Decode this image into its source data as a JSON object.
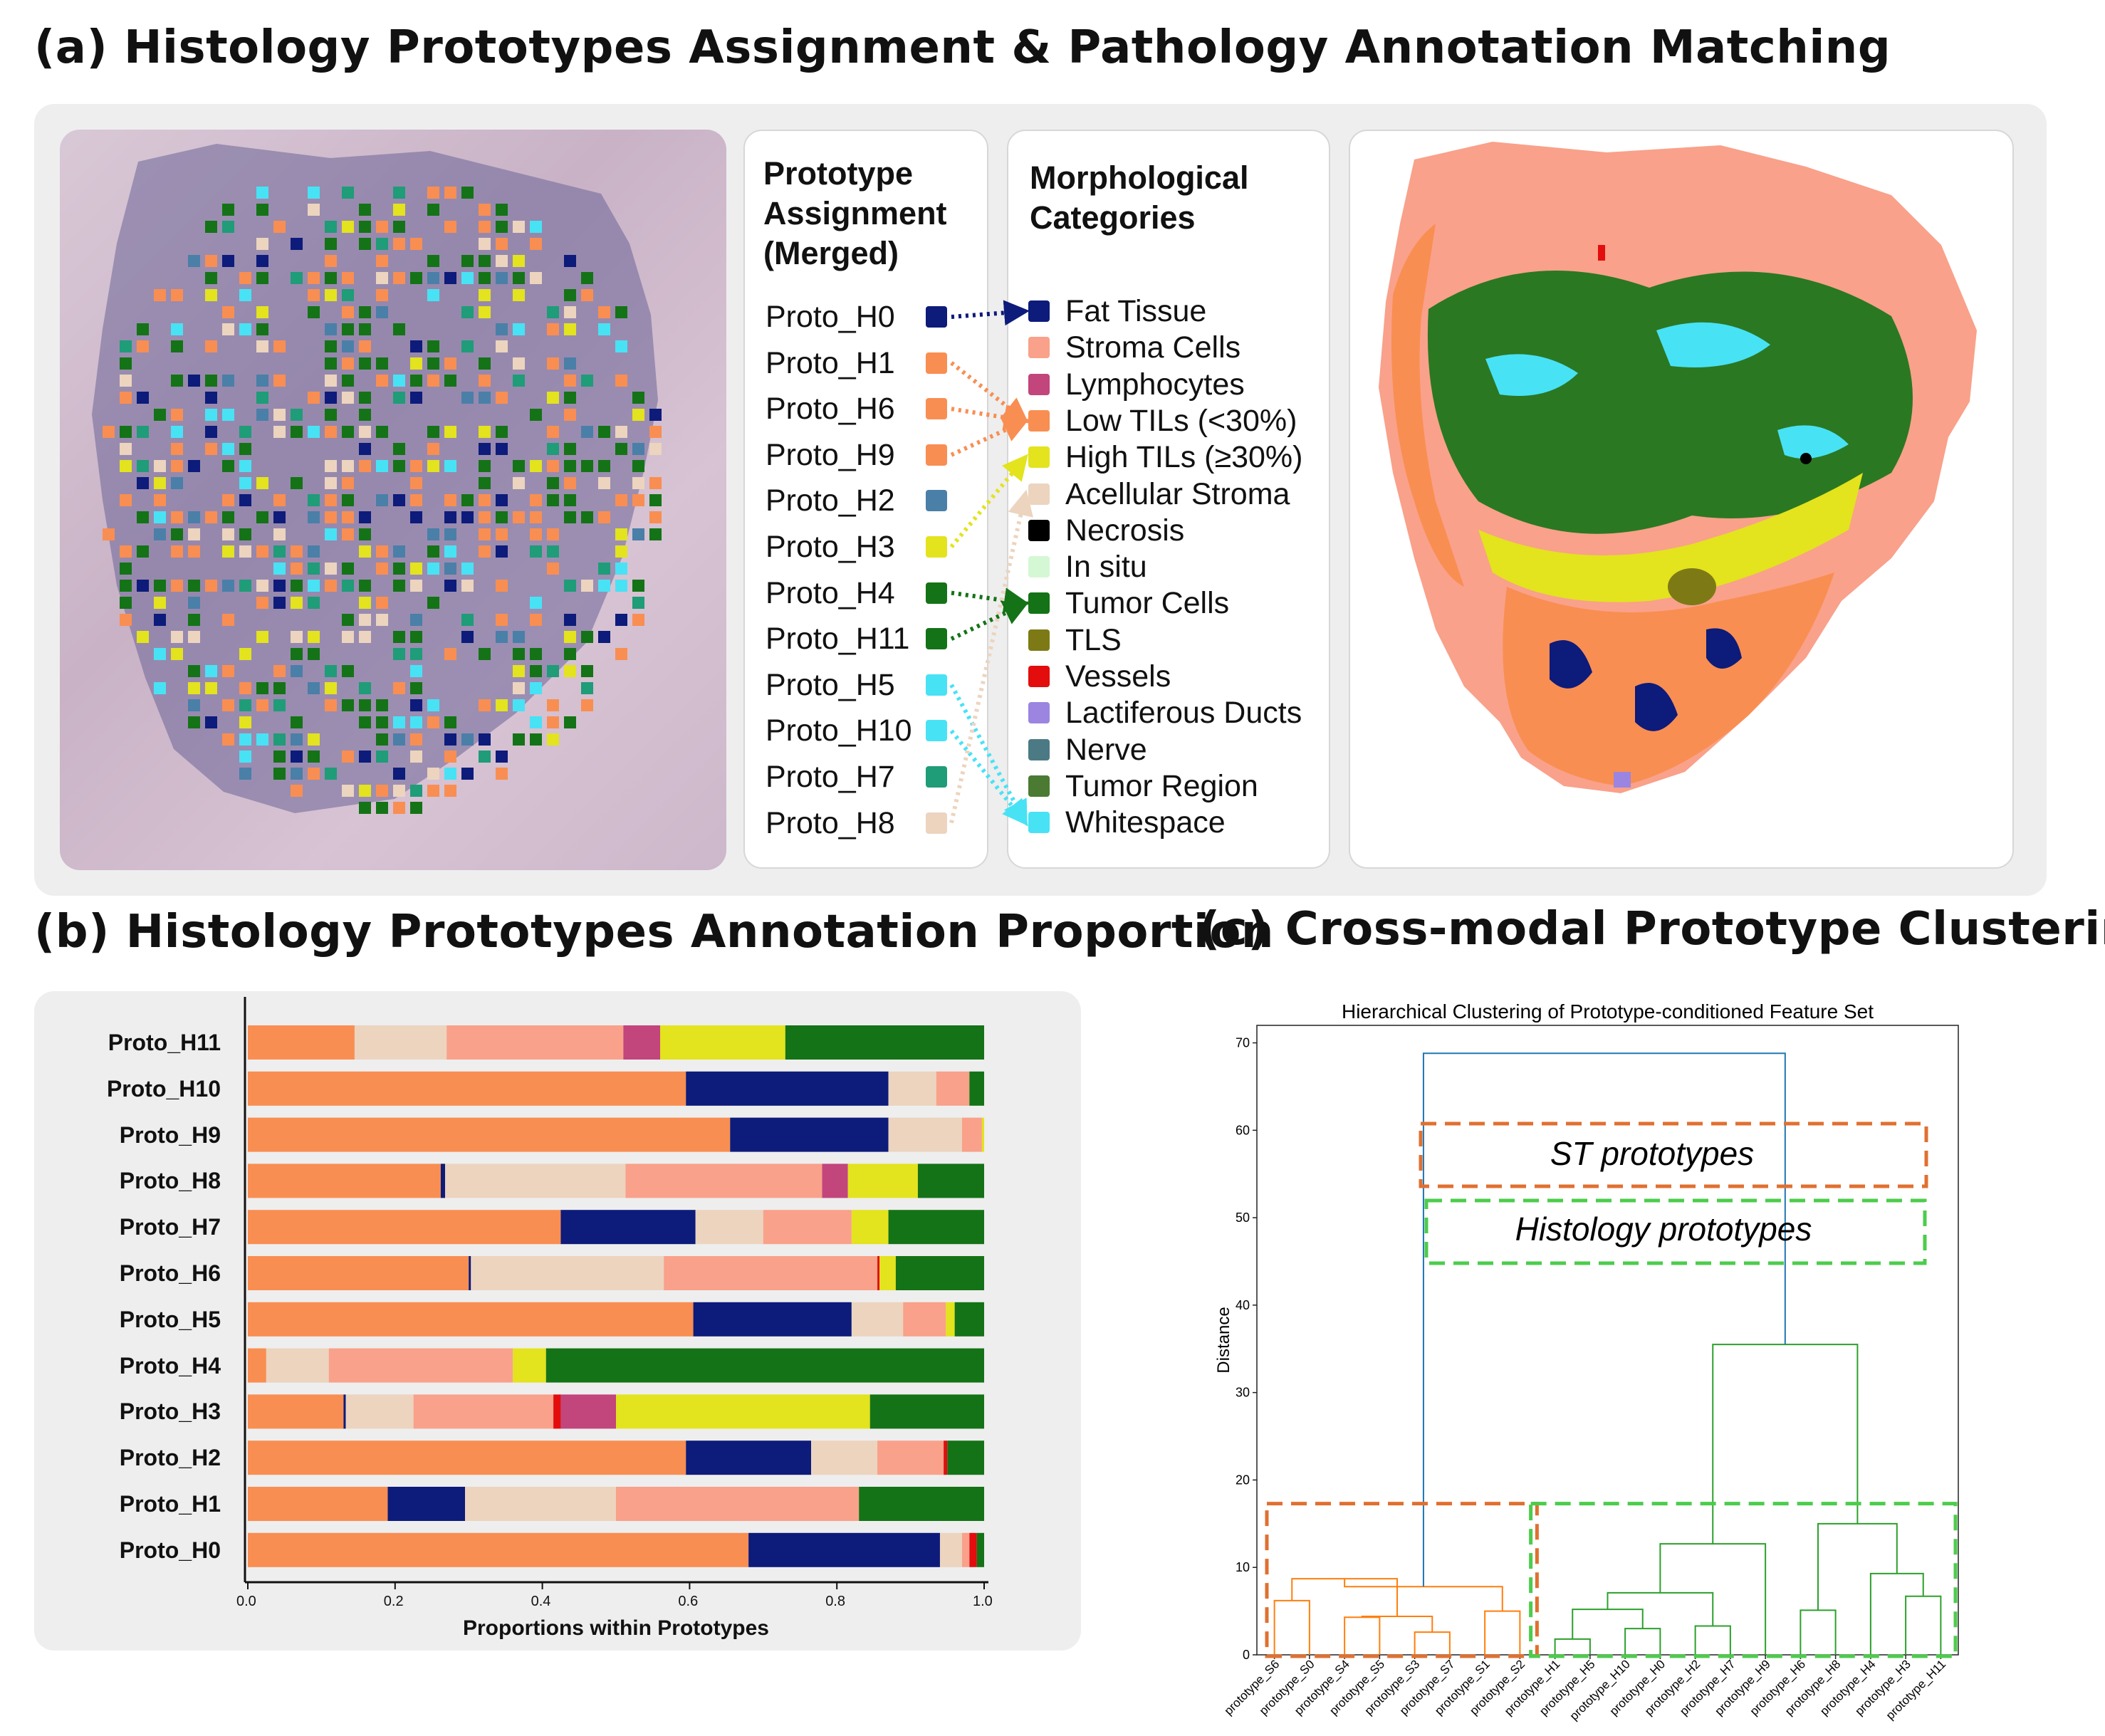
{
  "titles": {
    "a": "(a) Histology Prototypes Assignment & Pathology Annotation Matching",
    "b": "(b) Histology Prototypes Annotation Proportion",
    "c": "(c) Cross-modal Prototype Clustering"
  },
  "panel_a": {
    "assignment_title_lines": [
      "Prototype",
      "Assignment",
      "(Merged)"
    ],
    "morph_title_lines": [
      "Morphological",
      "Categories"
    ],
    "prototypes": [
      {
        "label": "Proto_H0",
        "color": "#0d1b7a",
        "target": "Fat Tissue"
      },
      {
        "label": "Proto_H1",
        "color": "#f98e52",
        "target": "Low TILs (<30%)"
      },
      {
        "label": "Proto_H6",
        "color": "#f98e52",
        "target": "Low TILs (<30%)"
      },
      {
        "label": "Proto_H9",
        "color": "#f98e52",
        "target": "Low TILs (<30%)"
      },
      {
        "label": "Proto_H2",
        "color": "#4a7fa8",
        "target": ""
      },
      {
        "label": "Proto_H3",
        "color": "#e3e31e",
        "target": "High TILs (≥30%)"
      },
      {
        "label": "Proto_H4",
        "color": "#147316",
        "target": "Tumor Cells"
      },
      {
        "label": "Proto_H11",
        "color": "#147316",
        "target": "Tumor Cells"
      },
      {
        "label": "Proto_H5",
        "color": "#48e2f5",
        "target": "Whitespace"
      },
      {
        "label": "Proto_H10",
        "color": "#48e2f5",
        "target": "Whitespace"
      },
      {
        "label": "Proto_H7",
        "color": "#1f9c78",
        "target": ""
      },
      {
        "label": "Proto_H8",
        "color": "#ecd4bf",
        "target": "Acellular Stroma"
      }
    ],
    "categories": [
      {
        "label": "Fat Tissue",
        "color": "#0d1b7a"
      },
      {
        "label": "Stroma Cells",
        "color": "#f9a18a"
      },
      {
        "label": "Lymphocytes",
        "color": "#c2457c"
      },
      {
        "label": "Low TILs (<30%)",
        "color": "#f98e52"
      },
      {
        "label": "High TILs (≥30%)",
        "color": "#e3e31e"
      },
      {
        "label": "Acellular Stroma",
        "color": "#ecd4bf"
      },
      {
        "label": "Necrosis",
        "color": "#000000"
      },
      {
        "label": "In situ",
        "color": "#d4f7d4"
      },
      {
        "label": "Tumor Cells",
        "color": "#147316"
      },
      {
        "label": "TLS",
        "color": "#7d7a16"
      },
      {
        "label": "Vessels",
        "color": "#e30d0d"
      },
      {
        "label": "Lactiferous Ducts",
        "color": "#9b85e0"
      },
      {
        "label": "Nerve",
        "color": "#4b7a84"
      },
      {
        "label": "Tumor Region",
        "color": "#4b7a32"
      },
      {
        "label": "Whitespace",
        "color": "#48e2f5"
      }
    ]
  },
  "chart_data": [
    {
      "type": "bar",
      "orientation": "horizontal-stacked",
      "xlabel": "Proportions within Prototypes",
      "xlim": [
        0.0,
        1.0
      ],
      "xticks": [
        "0.0",
        "0.2",
        "0.4",
        "0.6",
        "0.8",
        "1.0"
      ],
      "categories": [
        "Proto_H11",
        "Proto_H10",
        "Proto_H9",
        "Proto_H8",
        "Proto_H7",
        "Proto_H6",
        "Proto_H5",
        "Proto_H4",
        "Proto_H3",
        "Proto_H2",
        "Proto_H1",
        "Proto_H0"
      ],
      "segment_colors": {
        "Low TILs": "#f98e52",
        "Fat Tissue": "#0d1b7a",
        "Acellular Stroma": "#ecd4bf",
        "Stroma Cells": "#f9a18a",
        "Vessels": "#e30d0d",
        "Lymphocytes": "#c2457c",
        "High TILs": "#e3e31e",
        "Tumor Cells": "#147316"
      },
      "rows": [
        [
          [
            "Low TILs",
            0.145
          ],
          [
            "Acellular Stroma",
            0.125
          ],
          [
            "Stroma Cells",
            0.24
          ],
          [
            "Lymphocytes",
            0.05
          ],
          [
            "High TILs",
            0.17
          ],
          [
            "Tumor Cells",
            0.27
          ]
        ],
        [
          [
            "Low TILs",
            0.595
          ],
          [
            "Fat Tissue",
            0.275
          ],
          [
            "Acellular Stroma",
            0.065
          ],
          [
            "Stroma Cells",
            0.045
          ],
          [
            "Tumor Cells",
            0.02
          ]
        ],
        [
          [
            "Low TILs",
            0.655
          ],
          [
            "Fat Tissue",
            0.215
          ],
          [
            "Acellular Stroma",
            0.1
          ],
          [
            "Stroma Cells",
            0.027
          ],
          [
            "High TILs",
            0.003
          ]
        ],
        [
          [
            "Low TILs",
            0.262
          ],
          [
            "Fat Tissue",
            0.006
          ],
          [
            "Acellular Stroma",
            0.245
          ],
          [
            "Stroma Cells",
            0.267
          ],
          [
            "Lymphocytes",
            0.035
          ],
          [
            "High TILs",
            0.095
          ],
          [
            "Tumor Cells",
            0.09
          ]
        ],
        [
          [
            "Low TILs",
            0.425
          ],
          [
            "Fat Tissue",
            0.183
          ],
          [
            "Acellular Stroma",
            0.092
          ],
          [
            "Stroma Cells",
            0.12
          ],
          [
            "High TILs",
            0.05
          ],
          [
            "Tumor Cells",
            0.13
          ]
        ],
        [
          [
            "Low TILs",
            0.3
          ],
          [
            "Fat Tissue",
            0.003
          ],
          [
            "Acellular Stroma",
            0.262
          ],
          [
            "Stroma Cells",
            0.29
          ],
          [
            "Vessels",
            0.003
          ],
          [
            "High TILs",
            0.022
          ],
          [
            "Tumor Cells",
            0.12
          ]
        ],
        [
          [
            "Low TILs",
            0.605
          ],
          [
            "Fat Tissue",
            0.215
          ],
          [
            "Acellular Stroma",
            0.07
          ],
          [
            "Stroma Cells",
            0.058
          ],
          [
            "High TILs",
            0.012
          ],
          [
            "Tumor Cells",
            0.04
          ]
        ],
        [
          [
            "Low TILs",
            0.025
          ],
          [
            "Acellular Stroma",
            0.085
          ],
          [
            "Stroma Cells",
            0.25
          ],
          [
            "High TILs",
            0.045
          ],
          [
            "Tumor Cells",
            0.595
          ]
        ],
        [
          [
            "Low TILs",
            0.13
          ],
          [
            "Fat Tissue",
            0.003
          ],
          [
            "Acellular Stroma",
            0.092
          ],
          [
            "Stroma Cells",
            0.19
          ],
          [
            "Vessels",
            0.01
          ],
          [
            "Lymphocytes",
            0.075
          ],
          [
            "High TILs",
            0.345
          ],
          [
            "Tumor Cells",
            0.155
          ]
        ],
        [
          [
            "Low TILs",
            0.595
          ],
          [
            "Fat Tissue",
            0.17
          ],
          [
            "Acellular Stroma",
            0.09
          ],
          [
            "Stroma Cells",
            0.09
          ],
          [
            "Vessels",
            0.005
          ],
          [
            "Tumor Cells",
            0.05
          ]
        ],
        [
          [
            "Low TILs",
            0.19
          ],
          [
            "Fat Tissue",
            0.105
          ],
          [
            "Acellular Stroma",
            0.205
          ],
          [
            "Stroma Cells",
            0.33
          ],
          [
            "Tumor Cells",
            0.17
          ]
        ],
        [
          [
            "Low TILs",
            0.68
          ],
          [
            "Fat Tissue",
            0.26
          ],
          [
            "Acellular Stroma",
            0.03
          ],
          [
            "Stroma Cells",
            0.01
          ],
          [
            "Vessels",
            0.01
          ],
          [
            "Tumor Cells",
            0.01
          ]
        ]
      ]
    },
    {
      "type": "dendrogram",
      "title": "Hierarchical Clustering of Prototype-conditioned Feature Set",
      "ylabel": "Distance",
      "ylim": [
        0,
        72
      ],
      "yticks": [
        "0",
        "10",
        "20",
        "30",
        "40",
        "50",
        "60",
        "70"
      ],
      "leaves": [
        "prototype_S6",
        "prototype_S0",
        "prototype_S4",
        "prototype_S5",
        "prototype_S3",
        "prototype_S7",
        "prototype_S1",
        "prototype_S2",
        "prototype_H1",
        "prototype_H5",
        "prototype_H10",
        "prototype_H0",
        "prototype_H2",
        "prototype_H7",
        "prototype_H9",
        "prototype_H6",
        "prototype_H8",
        "prototype_H4",
        "prototype_H3",
        "prototype_H11"
      ],
      "merges": [
        {
          "id": "m1",
          "left": "prototype_S6",
          "right": "prototype_S0",
          "height": 6.2,
          "group": "st"
        },
        {
          "id": "m2",
          "left": "prototype_S4",
          "right": "prototype_S5",
          "height": 4.3,
          "group": "st"
        },
        {
          "id": "m3",
          "left": "prototype_S3",
          "right": "prototype_S7",
          "height": 2.6,
          "group": "st"
        },
        {
          "id": "m4",
          "left": "m2",
          "right": "m3",
          "height": 4.4,
          "group": "st"
        },
        {
          "id": "m5",
          "left": "m1",
          "right": "m4",
          "height": 8.7,
          "group": "st"
        },
        {
          "id": "m6",
          "left": "prototype_S1",
          "right": "prototype_S2",
          "height": 5.0,
          "group": "st"
        },
        {
          "id": "m7",
          "left": "m5",
          "right": "m6",
          "height": 7.8,
          "group": "st"
        },
        {
          "id": "m8",
          "left": "prototype_H1",
          "right": "prototype_H5",
          "height": 1.8,
          "group": "histo"
        },
        {
          "id": "m9",
          "left": "prototype_H10",
          "right": "prototype_H0",
          "height": 3.0,
          "group": "histo"
        },
        {
          "id": "m10",
          "left": "m8",
          "right": "m9",
          "height": 5.2,
          "group": "histo"
        },
        {
          "id": "m11",
          "left": "prototype_H2",
          "right": "prototype_H7",
          "height": 3.3,
          "group": "histo"
        },
        {
          "id": "m12",
          "left": "m10",
          "right": "m11",
          "height": 7.1,
          "group": "histo"
        },
        {
          "id": "m13",
          "left": "m12",
          "right": "prototype_H9",
          "height": 12.7,
          "group": "histo"
        },
        {
          "id": "m14",
          "left": "prototype_H6",
          "right": "prototype_H8",
          "height": 5.1,
          "group": "histo"
        },
        {
          "id": "m15",
          "left": "prototype_H3",
          "right": "prototype_H11",
          "height": 6.7,
          "group": "histo"
        },
        {
          "id": "m16",
          "left": "prototype_H4",
          "right": "m15",
          "height": 9.3,
          "group": "histo"
        },
        {
          "id": "m17",
          "left": "m14",
          "right": "m16",
          "height": 15.0,
          "group": "histo"
        },
        {
          "id": "m18",
          "left": "m13",
          "right": "m17",
          "height": 35.5,
          "group": "histo"
        },
        {
          "id": "m19",
          "left": "m7",
          "right": "m18",
          "height": 68.8,
          "group": "root"
        }
      ],
      "legend_boxes": {
        "st": "ST prototypes",
        "histo": "Histology prototypes"
      },
      "colors": {
        "st": "#ff7f0e",
        "histo": "#2ca02c",
        "root": "#1f77b4",
        "st_box": "#e07030",
        "histo_box": "#4ccc4c"
      }
    }
  ]
}
